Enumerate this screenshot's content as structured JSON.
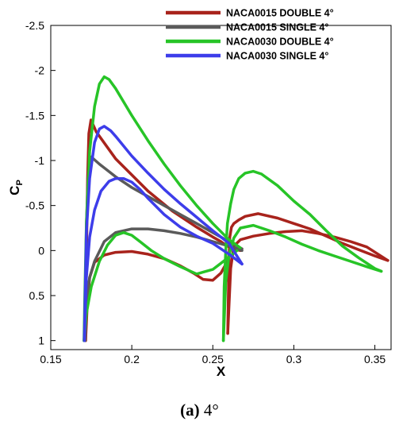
{
  "caption": {
    "label": "(a)",
    "text": "4°"
  },
  "chart_data": {
    "type": "line",
    "xlabel": "X",
    "ylabel": "C",
    "ylabel_sub": "P",
    "xlim": [
      0.15,
      0.36
    ],
    "ylim": [
      -2.5,
      1.1
    ],
    "y_reversed": true,
    "grid": false,
    "legend_position": "top-right",
    "x_ticks": [
      0.15,
      0.2,
      0.25,
      0.3,
      0.35
    ],
    "x_tick_labels": [
      "0.15",
      "0.2",
      "0.25",
      "0.3",
      "0.35"
    ],
    "y_ticks": [
      -2.5,
      -2,
      -1.5,
      -1,
      -0.5,
      0,
      0.5,
      1
    ],
    "y_tick_labels": [
      "-2.5",
      "-2",
      "-1.5",
      "-1",
      "-0.5",
      "0",
      "0.5",
      "1"
    ],
    "series": [
      {
        "name": "NACA0015 DOUBLE 4°",
        "color": "#a8231c",
        "segments": [
          {
            "x": [
              0.1715,
              0.1718,
              0.1722,
              0.1727,
              0.1735,
              0.1748,
              0.178,
              0.19,
              0.21,
              0.225,
              0.24,
              0.25,
              0.255,
              0.258,
              0.261,
              0.264,
              0.267
            ],
            "y": [
              1.0,
              0.4,
              -0.2,
              -0.8,
              -1.3,
              -1.45,
              -1.32,
              -1.02,
              -0.66,
              -0.44,
              -0.26,
              -0.15,
              -0.1,
              -0.06,
              -0.03,
              -0.01,
              0.0
            ]
          },
          {
            "x": [
              0.1715,
              0.1725,
              0.174,
              0.177,
              0.183,
              0.19,
              0.2,
              0.21,
              0.22,
              0.23,
              0.238,
              0.244,
              0.25,
              0.255,
              0.259,
              0.2605
            ],
            "y": [
              1.0,
              0.6,
              0.3,
              0.13,
              0.05,
              0.02,
              0.01,
              0.04,
              0.09,
              0.17,
              0.25,
              0.32,
              0.33,
              0.25,
              0.12,
              0.0
            ]
          },
          {
            "x": [
              0.2592,
              0.2596,
              0.26,
              0.2605,
              0.2615,
              0.263,
              0.266,
              0.27,
              0.278,
              0.29,
              0.3,
              0.31,
              0.32,
              0.33,
              0.34,
              0.35,
              0.358
            ],
            "y": [
              0.92,
              0.5,
              0.1,
              -0.15,
              -0.26,
              -0.3,
              -0.34,
              -0.38,
              -0.41,
              -0.36,
              -0.3,
              -0.24,
              -0.16,
              -0.08,
              -0.01,
              0.06,
              0.11
            ]
          },
          {
            "x": [
              0.2592,
              0.261,
              0.263,
              0.267,
              0.275,
              0.285,
              0.295,
              0.305,
              0.315,
              0.325,
              0.335,
              0.345,
              0.358
            ],
            "y": [
              0.92,
              0.2,
              -0.05,
              -0.12,
              -0.16,
              -0.19,
              -0.21,
              -0.22,
              -0.19,
              -0.15,
              -0.1,
              -0.04,
              0.11
            ]
          }
        ]
      },
      {
        "name": "NACA0015 SINGLE 4°",
        "color": "#5a5a5a",
        "segments": [
          {
            "x": [
              0.1712,
              0.1715,
              0.172,
              0.173,
              0.175,
              0.18,
              0.19,
              0.2,
              0.21,
              0.22,
              0.23,
              0.24,
              0.25,
              0.26,
              0.268
            ],
            "y": [
              1.0,
              0.4,
              -0.3,
              -0.8,
              -1.04,
              -0.96,
              -0.82,
              -0.7,
              -0.6,
              -0.5,
              -0.4,
              -0.3,
              -0.2,
              -0.1,
              -0.02
            ]
          },
          {
            "x": [
              0.1712,
              0.172,
              0.174,
              0.177,
              0.183,
              0.19,
              0.2,
              0.21,
              0.22,
              0.23,
              0.24,
              0.25,
              0.26,
              0.268
            ],
            "y": [
              1.0,
              0.55,
              0.3,
              0.12,
              -0.1,
              -0.2,
              -0.24,
              -0.24,
              -0.22,
              -0.19,
              -0.15,
              -0.1,
              -0.05,
              0.0
            ]
          }
        ]
      },
      {
        "name": "NACA0030 DOUBLE 4°",
        "color": "#27c427",
        "segments": [
          {
            "x": [
              0.1705,
              0.171,
              0.172,
              0.174,
              0.177,
              0.18,
              0.183,
              0.186,
              0.19,
              0.2,
              0.21,
              0.22,
              0.23,
              0.24,
              0.25,
              0.26,
              0.267
            ],
            "y": [
              1.0,
              0.5,
              -0.3,
              -1.1,
              -1.6,
              -1.85,
              -1.93,
              -1.9,
              -1.8,
              -1.5,
              -1.22,
              -0.96,
              -0.72,
              -0.5,
              -0.3,
              -0.12,
              -0.03
            ]
          },
          {
            "x": [
              0.1705,
              0.172,
              0.175,
              0.18,
              0.185,
              0.19,
              0.195,
              0.2,
              0.205,
              0.212,
              0.22,
              0.23,
              0.24,
              0.25,
              0.258,
              0.265
            ],
            "y": [
              1.0,
              0.7,
              0.4,
              0.12,
              -0.06,
              -0.17,
              -0.2,
              -0.17,
              -0.1,
              0.0,
              0.09,
              0.18,
              0.26,
              0.21,
              0.1,
              0.0
            ]
          },
          {
            "x": [
              0.2565,
              0.257,
              0.258,
              0.259,
              0.261,
              0.263,
              0.266,
              0.27,
              0.275,
              0.28,
              0.29,
              0.3,
              0.31,
              0.32,
              0.33,
              0.34,
              0.35,
              0.354
            ],
            "y": [
              1.0,
              0.4,
              0.0,
              -0.3,
              -0.52,
              -0.68,
              -0.8,
              -0.86,
              -0.88,
              -0.85,
              -0.72,
              -0.55,
              -0.4,
              -0.22,
              -0.05,
              0.08,
              0.2,
              0.23
            ]
          },
          {
            "x": [
              0.2565,
              0.258,
              0.26,
              0.263,
              0.267,
              0.275,
              0.285,
              0.295,
              0.305,
              0.315,
              0.325,
              0.335,
              0.345,
              0.354
            ],
            "y": [
              1.0,
              0.35,
              0.05,
              -0.14,
              -0.25,
              -0.28,
              -0.22,
              -0.15,
              -0.07,
              0.0,
              0.06,
              0.12,
              0.18,
              0.23
            ]
          }
        ]
      },
      {
        "name": "NACA0030 SINGLE 4°",
        "color": "#3d3dea",
        "segments": [
          {
            "x": [
              0.1707,
              0.1712,
              0.172,
              0.174,
              0.177,
              0.18,
              0.183,
              0.187,
              0.19,
              0.2,
              0.21,
              0.22,
              0.23,
              0.24,
              0.25,
              0.26,
              0.268
            ],
            "y": [
              1.0,
              0.5,
              -0.2,
              -0.8,
              -1.2,
              -1.35,
              -1.38,
              -1.33,
              -1.27,
              -1.05,
              -0.86,
              -0.68,
              -0.52,
              -0.37,
              -0.22,
              -0.08,
              0.15
            ]
          },
          {
            "x": [
              0.1707,
              0.172,
              0.174,
              0.177,
              0.181,
              0.186,
              0.19,
              0.195,
              0.2,
              0.205,
              0.21,
              0.22,
              0.23,
              0.24,
              0.25,
              0.26,
              0.268
            ],
            "y": [
              1.0,
              0.3,
              -0.15,
              -0.45,
              -0.66,
              -0.77,
              -0.8,
              -0.8,
              -0.76,
              -0.68,
              -0.58,
              -0.4,
              -0.26,
              -0.16,
              -0.08,
              0.04,
              0.15
            ]
          }
        ]
      }
    ]
  }
}
